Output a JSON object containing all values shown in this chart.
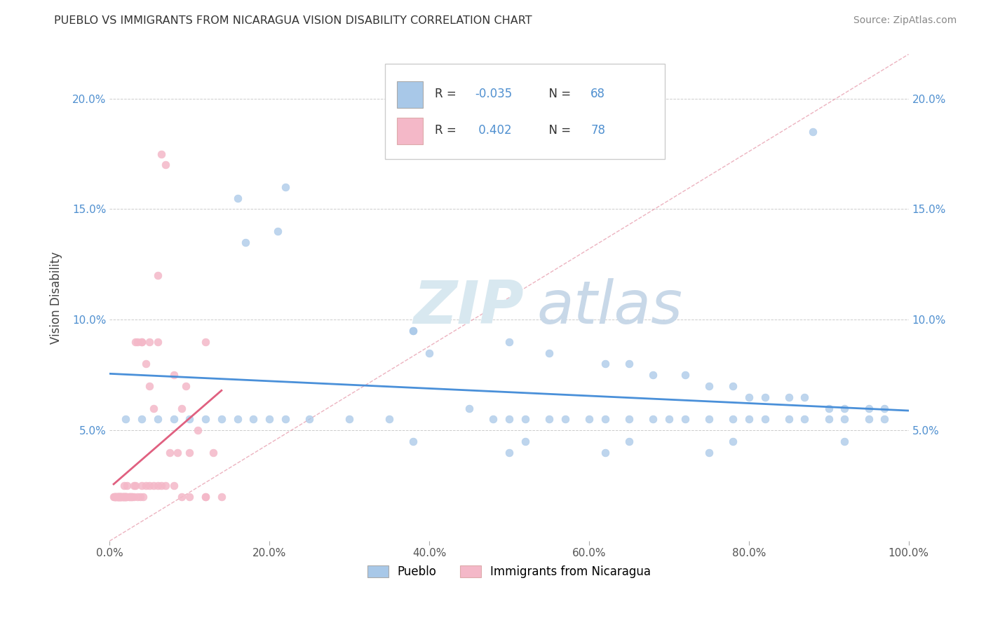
{
  "title": "PUEBLO VS IMMIGRANTS FROM NICARAGUA VISION DISABILITY CORRELATION CHART",
  "source": "Source: ZipAtlas.com",
  "ylabel": "Vision Disability",
  "watermark_zip": "ZIP",
  "watermark_atlas": "atlas",
  "xlim": [
    0,
    1.0
  ],
  "ylim": [
    0,
    0.22
  ],
  "xticks": [
    0.0,
    0.2,
    0.4,
    0.6,
    0.8,
    1.0
  ],
  "xtick_labels": [
    "0.0%",
    "20.0%",
    "40.0%",
    "60.0%",
    "80.0%",
    "100.0%"
  ],
  "yticks": [
    0.0,
    0.05,
    0.1,
    0.15,
    0.2
  ],
  "ytick_labels": [
    "",
    "5.0%",
    "10.0%",
    "15.0%",
    "20.0%"
  ],
  "pueblo_color": "#a8c8e8",
  "nicaragua_color": "#f4b8c8",
  "pueblo_line_color": "#4a90d9",
  "nicaragua_line_color": "#e06080",
  "diagonal_color": "#e8a0b0",
  "tick_color": "#5090d0",
  "legend_r1_label": "R = ",
  "legend_r1_val": "-0.035",
  "legend_n1_label": "N = ",
  "legend_n1_val": "68",
  "legend_r2_label": "R =  ",
  "legend_r2_val": "0.402",
  "legend_n2_label": "N = ",
  "legend_n2_val": "78",
  "bottom_label1": "Pueblo",
  "bottom_label2": "Immigrants from Nicaragua",
  "pueblo_scatter_x": [
    0.16,
    0.17,
    0.21,
    0.22,
    0.38,
    0.5,
    0.55,
    0.62,
    0.65,
    0.68,
    0.72,
    0.75,
    0.78,
    0.8,
    0.82,
    0.85,
    0.87,
    0.9,
    0.92,
    0.95,
    0.97,
    0.5,
    0.38,
    0.4,
    0.45,
    0.48,
    0.52,
    0.55,
    0.57,
    0.6,
    0.62,
    0.65,
    0.68,
    0.7,
    0.72,
    0.75,
    0.78,
    0.8,
    0.82,
    0.85,
    0.87,
    0.9,
    0.92,
    0.95,
    0.97,
    0.35,
    0.3,
    0.25,
    0.22,
    0.2,
    0.18,
    0.16,
    0.14,
    0.12,
    0.1,
    0.08,
    0.06,
    0.04,
    0.02,
    0.38,
    0.52,
    0.65,
    0.78,
    0.92,
    0.5,
    0.62,
    0.75,
    0.88
  ],
  "pueblo_scatter_y": [
    0.155,
    0.135,
    0.14,
    0.16,
    0.095,
    0.09,
    0.085,
    0.08,
    0.08,
    0.075,
    0.075,
    0.07,
    0.07,
    0.065,
    0.065,
    0.065,
    0.065,
    0.06,
    0.06,
    0.06,
    0.06,
    0.055,
    0.095,
    0.085,
    0.06,
    0.055,
    0.055,
    0.055,
    0.055,
    0.055,
    0.055,
    0.055,
    0.055,
    0.055,
    0.055,
    0.055,
    0.055,
    0.055,
    0.055,
    0.055,
    0.055,
    0.055,
    0.055,
    0.055,
    0.055,
    0.055,
    0.055,
    0.055,
    0.055,
    0.055,
    0.055,
    0.055,
    0.055,
    0.055,
    0.055,
    0.055,
    0.055,
    0.055,
    0.055,
    0.045,
    0.045,
    0.045,
    0.045,
    0.045,
    0.04,
    0.04,
    0.04,
    0.185
  ],
  "nicaragua_scatter_x": [
    0.005,
    0.006,
    0.007,
    0.008,
    0.009,
    0.01,
    0.011,
    0.012,
    0.013,
    0.014,
    0.015,
    0.016,
    0.017,
    0.018,
    0.019,
    0.02,
    0.021,
    0.022,
    0.025,
    0.028,
    0.03,
    0.032,
    0.035,
    0.04,
    0.045,
    0.05,
    0.055,
    0.06,
    0.065,
    0.07,
    0.075,
    0.08,
    0.085,
    0.09,
    0.095,
    0.1,
    0.11,
    0.12,
    0.13,
    0.14,
    0.007,
    0.008,
    0.009,
    0.01,
    0.011,
    0.012,
    0.013,
    0.014,
    0.015,
    0.016,
    0.017,
    0.018,
    0.019,
    0.02,
    0.022,
    0.024,
    0.026,
    0.028,
    0.03,
    0.032,
    0.035,
    0.038,
    0.04,
    0.042,
    0.045,
    0.05,
    0.055,
    0.06,
    0.065,
    0.07,
    0.08,
    0.09,
    0.1,
    0.12,
    0.04,
    0.05,
    0.06,
    0.12
  ],
  "nicaragua_scatter_y": [
    0.02,
    0.02,
    0.02,
    0.02,
    0.02,
    0.02,
    0.02,
    0.02,
    0.02,
    0.02,
    0.02,
    0.02,
    0.02,
    0.025,
    0.02,
    0.02,
    0.02,
    0.025,
    0.02,
    0.02,
    0.025,
    0.09,
    0.09,
    0.09,
    0.08,
    0.07,
    0.06,
    0.12,
    0.175,
    0.17,
    0.04,
    0.075,
    0.04,
    0.06,
    0.07,
    0.04,
    0.05,
    0.02,
    0.04,
    0.02,
    0.02,
    0.02,
    0.02,
    0.02,
    0.02,
    0.02,
    0.02,
    0.02,
    0.02,
    0.02,
    0.02,
    0.02,
    0.02,
    0.02,
    0.02,
    0.02,
    0.02,
    0.02,
    0.02,
    0.025,
    0.02,
    0.02,
    0.025,
    0.02,
    0.025,
    0.025,
    0.025,
    0.025,
    0.025,
    0.025,
    0.025,
    0.02,
    0.02,
    0.02,
    0.09,
    0.09,
    0.09,
    0.09
  ]
}
